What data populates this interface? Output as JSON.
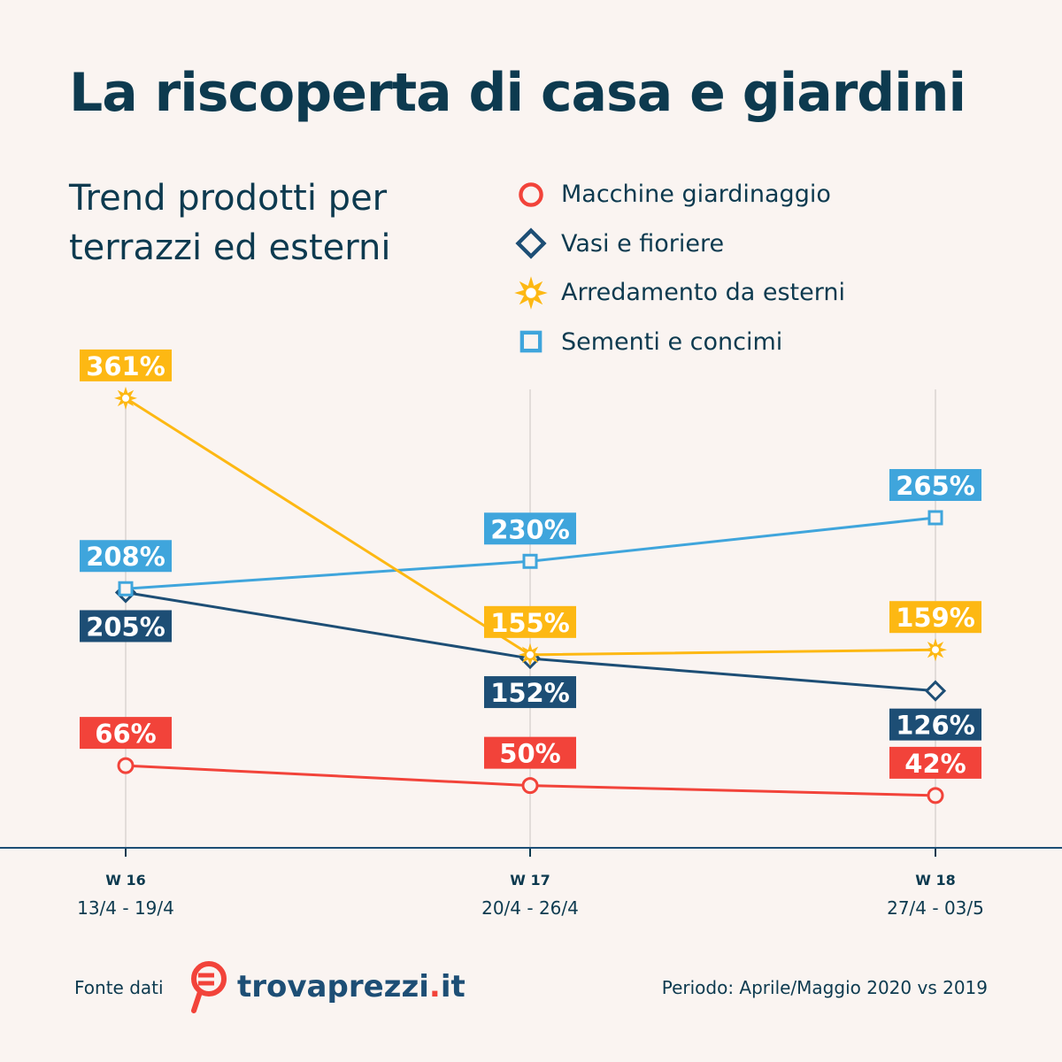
{
  "title": "La riscoperta di casa e giardini",
  "subtitle": "Trend prodotti per terrazzi ed esterni",
  "colors": {
    "background": "#faf4f1",
    "text": "#0d3a4f",
    "red": "#f2433a",
    "navy": "#1d4e75",
    "yellow": "#fdb813",
    "blue": "#3fa5dc"
  },
  "chart_data": {
    "type": "line",
    "title": "Trend prodotti per terrazzi ed esterni",
    "categories": [
      "W 16",
      "W 17",
      "W 18"
    ],
    "category_dates": [
      "13/4 - 19/4",
      "20/4 - 26/4",
      "27/4 - 03/5"
    ],
    "unit": "%",
    "legend_position": "top-right",
    "grid": false,
    "series": [
      {
        "name": "Macchine giardinaggio",
        "marker": "circle",
        "color": "#f2433a",
        "values": [
          66,
          50,
          42
        ],
        "labels": [
          "66%",
          "50%",
          "42%"
        ]
      },
      {
        "name": "Vasi e fioriere",
        "marker": "diamond",
        "color": "#1d4e75",
        "values": [
          205,
          152,
          126
        ],
        "labels": [
          "205%",
          "152%",
          "126%"
        ]
      },
      {
        "name": "Arredamento da esterni",
        "marker": "star",
        "color": "#fdb813",
        "values": [
          361,
          155,
          159
        ],
        "labels": [
          "361%",
          "155%",
          "159%"
        ]
      },
      {
        "name": "Sementi e concimi",
        "marker": "square",
        "color": "#3fa5dc",
        "values": [
          208,
          230,
          265
        ],
        "labels": [
          "208%",
          "230%",
          "265%"
        ]
      }
    ]
  },
  "footer": {
    "source_label": "Fonte dati",
    "logo_text": "trovaprezzi",
    "logo_dot": ".",
    "logo_tld": "it",
    "period": "Periodo: Aprile/Maggio 2020 vs 2019"
  }
}
